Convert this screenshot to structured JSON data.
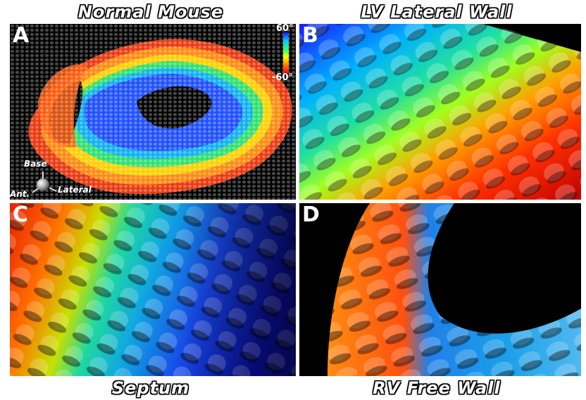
{
  "titles": {
    "top_left": "Normal Mouse",
    "top_right": "LV Lateral Wall",
    "bottom_left": "Septum",
    "bottom_right": "RV Free Wall"
  },
  "panels": {
    "a": {
      "letter": "A"
    },
    "b": {
      "letter": "B"
    },
    "c": {
      "letter": "C"
    },
    "d": {
      "letter": "D"
    }
  },
  "colorbar": {
    "max_label": "60°",
    "min_label": "-60°",
    "colors": [
      "#1a1aff",
      "#00d0ff",
      "#40ff60",
      "#ffff00",
      "#ff8000",
      "#ff0000"
    ]
  },
  "orientation": {
    "base": "Base",
    "anterior": "Ant.",
    "lateral": "Lateral"
  }
}
